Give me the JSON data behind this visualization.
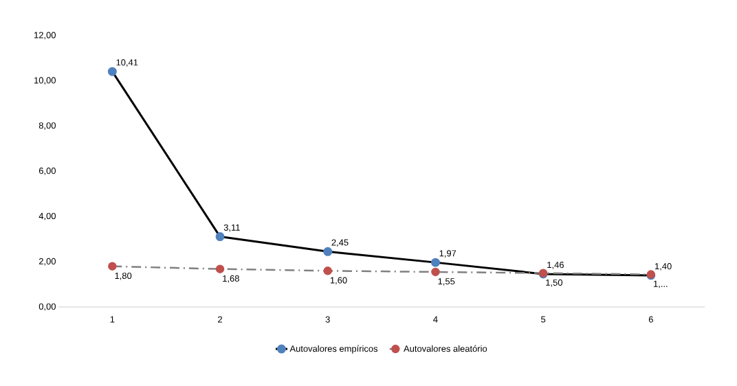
{
  "chart_data": {
    "type": "line",
    "categories": [
      "1",
      "2",
      "3",
      "4",
      "5",
      "6"
    ],
    "ylim": [
      0,
      12
    ],
    "yticks": [
      {
        "value": 0,
        "label": "0,00"
      },
      {
        "value": 2,
        "label": "2,00"
      },
      {
        "value": 4,
        "label": "4,00"
      },
      {
        "value": 6,
        "label": "6,00"
      },
      {
        "value": 8,
        "label": "8,00"
      },
      {
        "value": 10,
        "label": "10,00"
      },
      {
        "value": 12,
        "label": "12,00"
      }
    ],
    "series": [
      {
        "name": "Autovalores empíricos",
        "color": "#000000",
        "colors": [
          "#4f81bd",
          "#4f81bd",
          "#4f81bd",
          "#4f81bd",
          "#4f81bd",
          "#4f81bd"
        ],
        "line_style": "solid",
        "values": [
          10.41,
          3.11,
          2.45,
          1.97,
          1.46,
          1.4
        ],
        "value_labels": [
          "10,41",
          "3,11",
          "2,45",
          "1,97",
          "1,46",
          "1,40"
        ]
      },
      {
        "name": "Autovalores aleatório",
        "color": "#808080",
        "colors": [
          "#c0504d",
          "#c0504d",
          "#c0504d",
          "#c0504d",
          "#c0504d",
          "#c0504d"
        ],
        "line_style": "dashed",
        "values": [
          1.8,
          1.68,
          1.6,
          1.55,
          1.5,
          1.44
        ],
        "value_labels": [
          "1,80",
          "1,68",
          "1,60",
          "1,55",
          "1,50",
          "1,..."
        ]
      }
    ],
    "marker": "circle",
    "legend": "bottom",
    "grid": false
  }
}
